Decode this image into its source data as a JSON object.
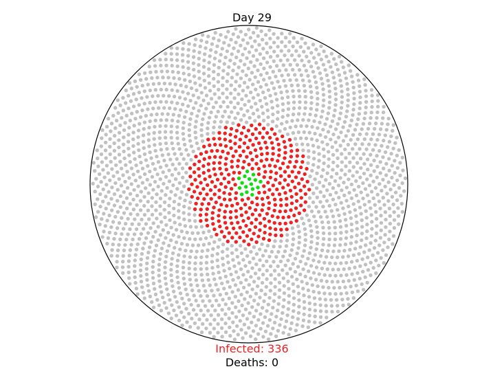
{
  "title": "Day 29",
  "infected": {
    "label": "Infected: 336",
    "count": 336,
    "color": "#ee2222"
  },
  "deaths": {
    "label": "Deaths: 0",
    "count": 0
  },
  "colors": {
    "susceptible": "#c0c0c0",
    "infected": "#ee2222",
    "recovered": "#11dd11",
    "boundary": "#000000"
  },
  "population": {
    "recovered": 16
  }
}
